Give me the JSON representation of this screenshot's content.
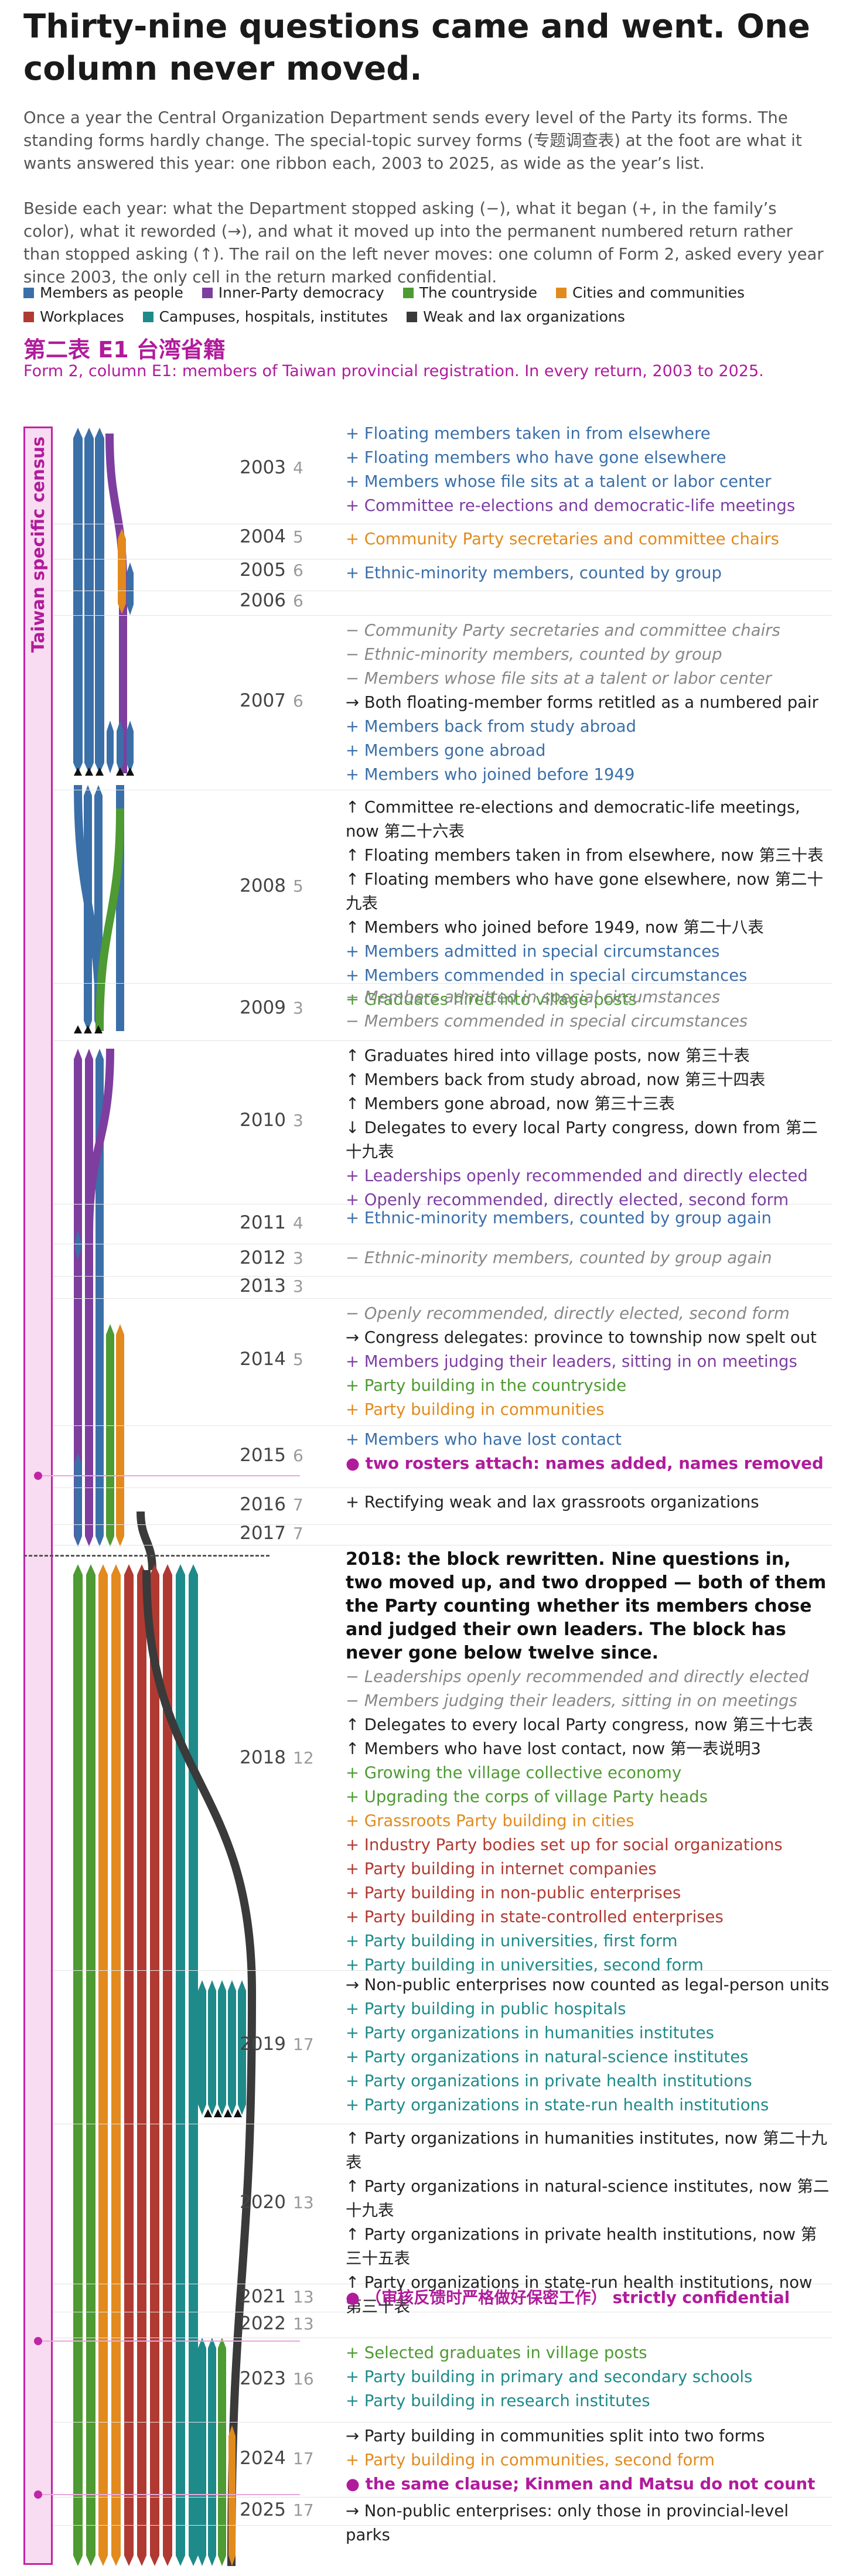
{
  "headline": "Thirty-nine questions came and went. One column never moved.",
  "intro": [
    "Once a year the Central Organization Department sends every level of the Party its forms. The standing forms hardly change. The special-topic survey forms (专题调查表) at the foot are what it wants answered this year: one ribbon each, 2003 to 2025, as wide as the year’s list.",
    "Beside each year: what the Department stopped asking (−), what it began (+, in the family’s color), what it reworded (→), and what it moved up into the permanent numbered return rather than stopped asking (↑). The rail on the left never moves: one column of Form 2, asked every year since 2003, the only cell in the return marked confidential."
  ],
  "legend": [
    {
      "label": "Members as people",
      "color": "#3b6fa8"
    },
    {
      "label": "Inner-Party democracy",
      "color": "#7d3ea0"
    },
    {
      "label": "The countryside",
      "color": "#4e9a33"
    },
    {
      "label": "Cities and communities",
      "color": "#e28a1d"
    },
    {
      "label": "Workplaces",
      "color": "#b03a32"
    },
    {
      "label": "Campuses, hospitals, institutes",
      "color": "#1f8a8a"
    },
    {
      "label": "Weak and lax organizations",
      "color": "#3a3a3a"
    }
  ],
  "form_title": "第二表 E1  台湾省籍",
  "form_subtitle": "Form 2, column E1: members of Taiwan provincial registration. In every return, 2003 to 2025.",
  "rail_label": "Taiwan specific census",
  "years": [
    {
      "year": "2003",
      "count": "4",
      "entries": [
        {
          "text": "+ Floating members taken in from elsewhere",
          "cls": "c-blue"
        },
        {
          "text": "+ Floating members who have gone elsewhere",
          "cls": "c-blue"
        },
        {
          "text": "+ Members whose file sits at a talent or labor center",
          "cls": "c-blue"
        },
        {
          "text": "+ Committee re-elections and democratic-life meetings",
          "cls": "c-purple"
        }
      ]
    },
    {
      "year": "2004",
      "count": "5",
      "entries": [
        {
          "text": "+ Community Party secretaries and committee chairs",
          "cls": "c-orange"
        }
      ]
    },
    {
      "year": "2005",
      "count": "6",
      "entries": [
        {
          "text": "+ Ethnic-minority members, counted by group",
          "cls": "c-blue"
        }
      ]
    },
    {
      "year": "2006",
      "count": "6",
      "entries": []
    },
    {
      "year": "2007",
      "count": "6",
      "entries": [
        {
          "text": "− Community Party secretaries and committee chairs",
          "cls": "c-gray"
        },
        {
          "text": "− Ethnic-minority members, counted by group",
          "cls": "c-gray"
        },
        {
          "text": "− Members whose file sits at a talent or labor center",
          "cls": "c-gray"
        },
        {
          "text": "→ Both floating-member forms retitled as a numbered pair",
          "cls": "c-black"
        },
        {
          "text": "+ Members back from study abroad",
          "cls": "c-blue"
        },
        {
          "text": "+ Members gone abroad",
          "cls": "c-blue"
        },
        {
          "text": "+ Members who joined before 1949",
          "cls": "c-blue"
        }
      ]
    },
    {
      "year": "2008",
      "count": "5",
      "entries": [
        {
          "text": "↑ Committee re-elections and democratic-life meetings, now 第二十六表",
          "cls": "c-black"
        },
        {
          "text": "↑ Floating members taken in from elsewhere, now 第三十表",
          "cls": "c-black"
        },
        {
          "text": "↑ Floating members who have gone elsewhere, now 第二十九表",
          "cls": "c-black"
        },
        {
          "text": "↑ Members who joined before 1949, now 第二十八表",
          "cls": "c-black"
        },
        {
          "text": "+ Members admitted in special circumstances",
          "cls": "c-blue"
        },
        {
          "text": "+ Members commended in special circumstances",
          "cls": "c-blue"
        },
        {
          "text": "+ Graduates hired into village posts",
          "cls": "c-green"
        }
      ]
    },
    {
      "year": "2009",
      "count": "3",
      "entries": [
        {
          "text": "− Members admitted in special circumstances",
          "cls": "c-gray"
        },
        {
          "text": "− Members commended in special circumstances",
          "cls": "c-gray"
        }
      ]
    },
    {
      "year": "2010",
      "count": "3",
      "entries": [
        {
          "text": "↑ Graduates hired into village posts, now 第三十表",
          "cls": "c-black"
        },
        {
          "text": "↑ Members back from study abroad, now 第三十四表",
          "cls": "c-black"
        },
        {
          "text": "↑ Members gone abroad, now 第三十三表",
          "cls": "c-black"
        },
        {
          "text": "↓ Delegates to every local Party congress, down from 第二十九表",
          "cls": "c-black"
        },
        {
          "text": "+ Leaderships openly recommended and directly elected",
          "cls": "c-purple"
        },
        {
          "text": "+ Openly recommended, directly elected, second form",
          "cls": "c-purple"
        }
      ]
    },
    {
      "year": "2011",
      "count": "4",
      "entries": [
        {
          "text": "+ Ethnic-minority members, counted by group again",
          "cls": "c-blue"
        }
      ]
    },
    {
      "year": "2012",
      "count": "3",
      "entries": [
        {
          "text": "− Ethnic-minority members, counted by group again",
          "cls": "c-gray"
        }
      ]
    },
    {
      "year": "2013",
      "count": "3",
      "entries": []
    },
    {
      "year": "2014",
      "count": "5",
      "entries": [
        {
          "text": "− Openly recommended, directly elected, second form",
          "cls": "c-gray"
        },
        {
          "text": "→ Congress delegates: province to township now spelt out",
          "cls": "c-black"
        },
        {
          "text": "+ Members judging their leaders, sitting in on meetings",
          "cls": "c-purple"
        },
        {
          "text": "+ Party building in the countryside",
          "cls": "c-green"
        },
        {
          "text": "+ Party building in communities",
          "cls": "c-orange"
        }
      ]
    },
    {
      "year": "2015",
      "count": "6",
      "entries": [
        {
          "text": "+ Members who have lost contact",
          "cls": "c-blue"
        },
        {
          "text": "● two rosters attach: names added, names removed",
          "cls": "c-magenta"
        }
      ]
    },
    {
      "year": "2016",
      "count": "7",
      "entries": [
        {
          "text": "+ Rectifying weak and lax grassroots organizations",
          "cls": "c-black"
        }
      ]
    },
    {
      "year": "2017",
      "count": "7",
      "entries": []
    },
    {
      "year": "2018",
      "count": "12",
      "head": "2018: the block rewritten. Nine questions in, two moved up, and two dropped — both of them the Party counting whether its members chose and judged their own leaders. The block has never gone below twelve since.",
      "entries": [
        {
          "text": "− Leaderships openly recommended and directly elected",
          "cls": "c-gray"
        },
        {
          "text": "− Members judging their leaders, sitting in on meetings",
          "cls": "c-gray"
        },
        {
          "text": "↑ Delegates to every local Party congress, now 第三十七表",
          "cls": "c-black"
        },
        {
          "text": "↑ Members who have lost contact, now 第一表说明3",
          "cls": "c-black"
        },
        {
          "text": "+ Growing the village collective economy",
          "cls": "c-green"
        },
        {
          "text": "+ Upgrading the corps of village Party heads",
          "cls": "c-green"
        },
        {
          "text": "+ Grassroots Party building in cities",
          "cls": "c-orange"
        },
        {
          "text": "+ Industry Party bodies set up for social organizations",
          "cls": "c-red"
        },
        {
          "text": "+ Party building in internet companies",
          "cls": "c-red"
        },
        {
          "text": "+ Party building in non-public enterprises",
          "cls": "c-red"
        },
        {
          "text": "+ Party building in state-controlled enterprises",
          "cls": "c-red"
        },
        {
          "text": "+ Party building in universities, first form",
          "cls": "c-teal"
        },
        {
          "text": "+ Party building in universities, second form",
          "cls": "c-teal"
        }
      ]
    },
    {
      "year": "2019",
      "count": "17",
      "entries": [
        {
          "text": "→ Non-public enterprises now counted as legal-person units",
          "cls": "c-black"
        },
        {
          "text": "+ Party building in public hospitals",
          "cls": "c-teal"
        },
        {
          "text": "+ Party organizations in humanities institutes",
          "cls": "c-teal"
        },
        {
          "text": "+ Party organizations in natural-science institutes",
          "cls": "c-teal"
        },
        {
          "text": "+ Party organizations in private health institutions",
          "cls": "c-teal"
        },
        {
          "text": "+ Party organizations in state-run health institutions",
          "cls": "c-teal"
        }
      ]
    },
    {
      "year": "2020",
      "count": "13",
      "entries": [
        {
          "text": "↑ Party organizations in humanities institutes, now 第二十九表",
          "cls": "c-black"
        },
        {
          "text": "↑ Party organizations in natural-science institutes, now 第二十九表",
          "cls": "c-black"
        },
        {
          "text": "↑ Party organizations in private health institutions, now 第三十五表",
          "cls": "c-black"
        },
        {
          "text": "↑ Party organizations in state-run health institutions, now 第三十表",
          "cls": "c-black"
        }
      ]
    },
    {
      "year": "2021",
      "count": "13",
      "entries": [
        {
          "text": "● （审核反馈时严格做好保密工作） strictly confidential",
          "cls": "c-magenta"
        }
      ]
    },
    {
      "year": "2022",
      "count": "13",
      "entries": []
    },
    {
      "year": "2023",
      "count": "16",
      "entries": [
        {
          "text": "+ Selected graduates in village posts",
          "cls": "c-green"
        },
        {
          "text": "+ Party building in primary and secondary schools",
          "cls": "c-teal"
        },
        {
          "text": "+ Party building in research institutes",
          "cls": "c-teal"
        }
      ]
    },
    {
      "year": "2024",
      "count": "17",
      "entries": [
        {
          "text": "→ Party building in communities split into two forms",
          "cls": "c-black"
        },
        {
          "text": "+ Party building in communities, second form",
          "cls": "c-orange"
        },
        {
          "text": "● the same clause; Kinmen and Matsu do not count",
          "cls": "c-magenta"
        }
      ]
    },
    {
      "year": "2025",
      "count": "17",
      "entries": [
        {
          "text": "→ Non-public enterprises: only those in provincial-level parks",
          "cls": "c-black"
        }
      ]
    }
  ]
}
